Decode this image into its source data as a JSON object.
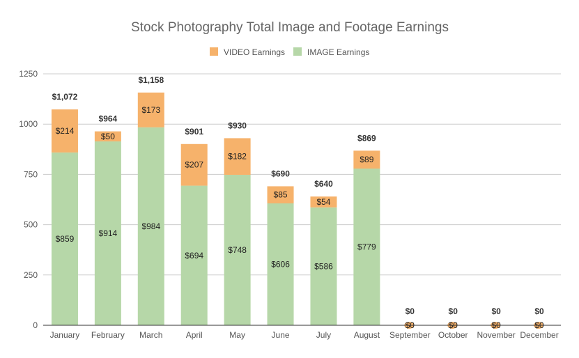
{
  "chart_data": {
    "type": "bar",
    "stacked": true,
    "title": "Stock Photography Total Image and Footage Earnings",
    "categories": [
      "January",
      "February",
      "March",
      "April",
      "May",
      "June",
      "July",
      "August",
      "September",
      "October",
      "November",
      "December"
    ],
    "series": [
      {
        "name": "IMAGE Earnings",
        "color": "#b6d7a8",
        "values": [
          859,
          914,
          984,
          694,
          748,
          606,
          586,
          779,
          0,
          0,
          0,
          0
        ],
        "labels": [
          "$859",
          "$914",
          "$984",
          "$694",
          "$748",
          "$606",
          "$586",
          "$779",
          "$0",
          "$0",
          "$0",
          "$0"
        ]
      },
      {
        "name": "VIDEO Earnings",
        "color": "#f6b26b",
        "values": [
          214,
          50,
          173,
          207,
          182,
          85,
          54,
          89,
          0,
          0,
          0,
          0
        ],
        "labels": [
          "$214",
          "$50",
          "$173",
          "$207",
          "$182",
          "$85",
          "$54",
          "$89",
          "$0",
          "$0",
          "$0",
          "$0"
        ]
      }
    ],
    "totals": [
      "$1,072",
      "$964",
      "$1,158",
      "$901",
      "$930",
      "$690",
      "$640",
      "$869",
      "$0",
      "$0",
      "$0",
      "$0"
    ],
    "legend_order": [
      "VIDEO Earnings",
      "IMAGE Earnings"
    ],
    "legend_position": "top-center",
    "ylim": [
      0,
      1250
    ],
    "yticks": [
      "0",
      "250",
      "500",
      "750",
      "1000",
      "1250"
    ],
    "grid": true
  }
}
